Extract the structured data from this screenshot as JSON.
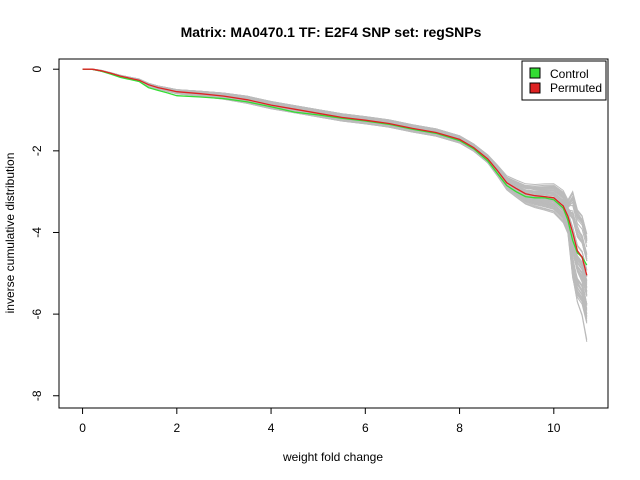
{
  "chart_data": {
    "type": "line",
    "title": "Matrix: MA0470.1 TF: E2F4 SNP set: regSNPs",
    "xlabel": "weight fold change",
    "ylabel": "inverse cumulative distribution",
    "xlim": [
      -0.5,
      11.15
    ],
    "ylim": [
      -8.3,
      0.25
    ],
    "xticks": [
      0,
      2,
      4,
      6,
      8,
      10
    ],
    "yticks": [
      0,
      -2,
      -4,
      -6,
      -8
    ],
    "grid": false,
    "legend_position": "top-right",
    "colors": {
      "control": "#33dd33",
      "permuted": "#dd2222",
      "background": "#bbbbbb"
    },
    "series": [
      {
        "name": "Control",
        "color": "#33dd33",
        "x": [
          0,
          0.2,
          0.4,
          0.6,
          0.8,
          1.0,
          1.2,
          1.4,
          1.6,
          1.8,
          2.0,
          2.5,
          3.0,
          3.5,
          4.0,
          4.5,
          5.0,
          5.5,
          6.0,
          6.5,
          7.0,
          7.5,
          8.0,
          8.3,
          8.6,
          8.8,
          9.0,
          9.2,
          9.4,
          9.6,
          9.8,
          10.0,
          10.1,
          10.2,
          10.3,
          10.4,
          10.5,
          10.6,
          10.7
        ],
        "y": [
          0,
          0,
          -0.05,
          -0.12,
          -0.2,
          -0.25,
          -0.3,
          -0.45,
          -0.52,
          -0.58,
          -0.65,
          -0.68,
          -0.72,
          -0.8,
          -0.92,
          -1.05,
          -1.12,
          -1.2,
          -1.27,
          -1.35,
          -1.47,
          -1.57,
          -1.75,
          -1.95,
          -2.25,
          -2.55,
          -2.85,
          -3.0,
          -3.12,
          -3.15,
          -3.15,
          -3.2,
          -3.3,
          -3.4,
          -3.7,
          -4.2,
          -4.5,
          -4.6,
          -4.8
        ]
      },
      {
        "name": "Permuted",
        "color": "#dd2222",
        "x": [
          0,
          0.2,
          0.4,
          0.6,
          0.8,
          1.0,
          1.2,
          1.4,
          1.6,
          1.8,
          2.0,
          2.5,
          3.0,
          3.5,
          4.0,
          4.5,
          5.0,
          5.5,
          6.0,
          6.5,
          7.0,
          7.5,
          8.0,
          8.3,
          8.6,
          8.8,
          9.0,
          9.2,
          9.4,
          9.6,
          9.8,
          10.0,
          10.1,
          10.2,
          10.3,
          10.4,
          10.5,
          10.6,
          10.7
        ],
        "y": [
          0,
          0,
          -0.04,
          -0.1,
          -0.17,
          -0.22,
          -0.27,
          -0.38,
          -0.45,
          -0.5,
          -0.55,
          -0.6,
          -0.66,
          -0.75,
          -0.88,
          -0.98,
          -1.08,
          -1.18,
          -1.25,
          -1.33,
          -1.45,
          -1.55,
          -1.72,
          -1.92,
          -2.2,
          -2.48,
          -2.78,
          -2.92,
          -3.05,
          -3.1,
          -3.12,
          -3.15,
          -3.25,
          -3.35,
          -3.6,
          -4.0,
          -4.45,
          -4.6,
          -5.05
        ]
      }
    ]
  }
}
